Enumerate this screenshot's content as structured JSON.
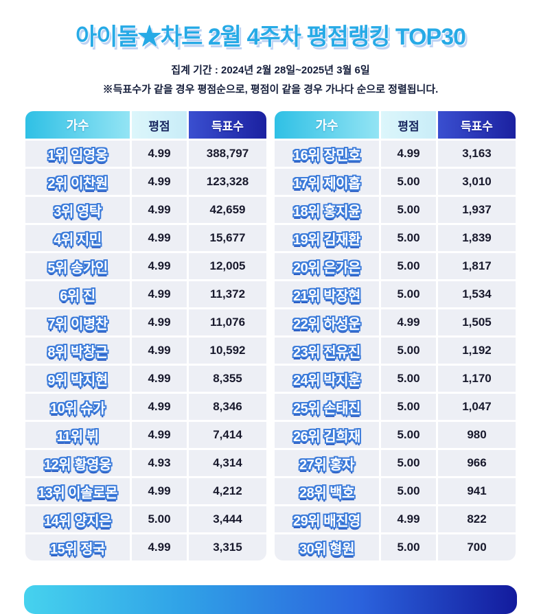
{
  "page": {
    "title": "아이돌★차트 2월 4주차 평점랭킹 TOP30",
    "subtitle_period": "집계 기간 : 2024년 2월 28일~2025년 3월 6일",
    "subtitle_note": "※득표수가 같을 경우 평점순으로, 평점이 같을 경우 가나다 순으로 정렬됩니다."
  },
  "table_header": {
    "singer": "가수",
    "rating": "평점",
    "votes": "득표수"
  },
  "colors": {
    "title_blue": "#27aae6",
    "header_cyan": "#2fc0e5",
    "header_pale": "#dcf6fb",
    "header_navy": "#1b21a0",
    "row_bg": "#edeff5",
    "name_outline_blue": "#3d7cda",
    "text_dark_navy": "#18192c"
  },
  "chart_data": {
    "type": "table",
    "title": "아이돌★차트 2월 4주차 평점랭킹 TOP30",
    "subtitle": "집계 기간 : 2024년 2월 28일~2025년 3월 6일",
    "columns": [
      "가수",
      "평점",
      "득표수"
    ],
    "layout": {
      "split_left_rows": 15,
      "split_right_rows": 15
    },
    "rows": [
      {
        "rank": 1,
        "name": "임영웅",
        "label": "1위 임영웅",
        "rating": "4.99",
        "votes": "388,797"
      },
      {
        "rank": 2,
        "name": "이찬원",
        "label": "2위 이찬원",
        "rating": "4.99",
        "votes": "123,328"
      },
      {
        "rank": 3,
        "name": "영탁",
        "label": "3위 영탁",
        "rating": "4.99",
        "votes": "42,659"
      },
      {
        "rank": 4,
        "name": "지민",
        "label": "4위 지민",
        "rating": "4.99",
        "votes": "15,677"
      },
      {
        "rank": 5,
        "name": "송가인",
        "label": "5위 송가인",
        "rating": "4.99",
        "votes": "12,005"
      },
      {
        "rank": 6,
        "name": "진",
        "label": "6위 진",
        "rating": "4.99",
        "votes": "11,372"
      },
      {
        "rank": 7,
        "name": "이병찬",
        "label": "7위 이병찬",
        "rating": "4.99",
        "votes": "11,076"
      },
      {
        "rank": 8,
        "name": "박창근",
        "label": "8위 박창근",
        "rating": "4.99",
        "votes": "10,592"
      },
      {
        "rank": 9,
        "name": "박지현",
        "label": "9위 박지현",
        "rating": "4.99",
        "votes": "8,355"
      },
      {
        "rank": 10,
        "name": "슈가",
        "label": "10위 슈가",
        "rating": "4.99",
        "votes": "8,346"
      },
      {
        "rank": 11,
        "name": "뷔",
        "label": "11위 뷔",
        "rating": "4.99",
        "votes": "7,414"
      },
      {
        "rank": 12,
        "name": "황영웅",
        "label": "12위 황영웅",
        "rating": "4.93",
        "votes": "4,314"
      },
      {
        "rank": 13,
        "name": "이솔로몬",
        "label": "13위 이솔로몬",
        "rating": "4.99",
        "votes": "4,212"
      },
      {
        "rank": 14,
        "name": "양지은",
        "label": "14위 양지은",
        "rating": "5.00",
        "votes": "3,444"
      },
      {
        "rank": 15,
        "name": "정국",
        "label": "15위 정국",
        "rating": "4.99",
        "votes": "3,315"
      },
      {
        "rank": 16,
        "name": "장민호",
        "label": "16위 장민호",
        "rating": "4.99",
        "votes": "3,163"
      },
      {
        "rank": 17,
        "name": "제이홉",
        "label": "17위 제이홉",
        "rating": "5.00",
        "votes": "3,010"
      },
      {
        "rank": 18,
        "name": "홍지윤",
        "label": "18위 홍지윤",
        "rating": "5.00",
        "votes": "1,937"
      },
      {
        "rank": 19,
        "name": "김재환",
        "label": "19위 김재환",
        "rating": "5.00",
        "votes": "1,839"
      },
      {
        "rank": 20,
        "name": "은가은",
        "label": "20위 은가은",
        "rating": "5.00",
        "votes": "1,817"
      },
      {
        "rank": 21,
        "name": "박장현",
        "label": "21위 박장현",
        "rating": "5.00",
        "votes": "1,534"
      },
      {
        "rank": 22,
        "name": "하성운",
        "label": "22위 하성운",
        "rating": "4.99",
        "votes": "1,505"
      },
      {
        "rank": 23,
        "name": "전유진",
        "label": "23위 전유진",
        "rating": "5.00",
        "votes": "1,192"
      },
      {
        "rank": 24,
        "name": "박지훈",
        "label": "24위 박지훈",
        "rating": "5.00",
        "votes": "1,170"
      },
      {
        "rank": 25,
        "name": "손태진",
        "label": "25위 손태진",
        "rating": "5.00",
        "votes": "1,047"
      },
      {
        "rank": 26,
        "name": "김희재",
        "label": "26위 김희재",
        "rating": "5.00",
        "votes": "980"
      },
      {
        "rank": 27,
        "name": "홍자",
        "label": "27위 홍자",
        "rating": "5.00",
        "votes": "966"
      },
      {
        "rank": 28,
        "name": "백호",
        "label": "28위 백호",
        "rating": "5.00",
        "votes": "941"
      },
      {
        "rank": 29,
        "name": "배진영",
        "label": "29위 배진영",
        "rating": "4.99",
        "votes": "822"
      },
      {
        "rank": 30,
        "name": "형원",
        "label": "30위 형원",
        "rating": "5.00",
        "votes": "700"
      }
    ]
  }
}
